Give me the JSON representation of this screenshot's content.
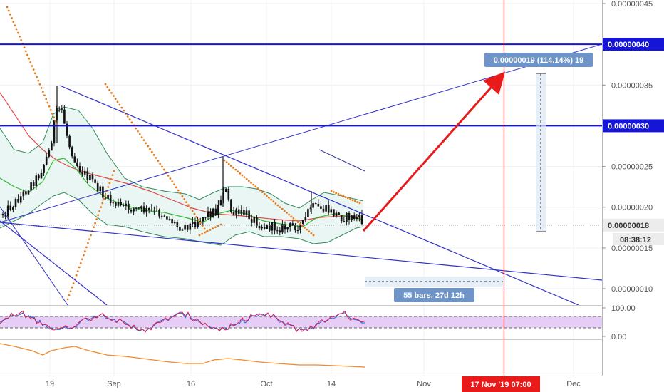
{
  "chart_data": {
    "type": "candlestick",
    "price_scale": {
      "ticks": [
        "0.00000045",
        "0.00000035",
        "0.00000025",
        "0.00000020",
        "0.00000015",
        "0.00000010"
      ],
      "tick_values": [
        4.5e-07,
        3.5e-07,
        2.5e-07,
        2e-07,
        1.5e-07,
        1e-07
      ],
      "range": [
        7e-08,
        4.6e-07
      ],
      "horizontal_levels": [
        {
          "label": "0.00000040",
          "value": 4e-07
        },
        {
          "label": "0.00000030",
          "value": 3e-07
        }
      ],
      "current_price": {
        "label": "0.00000018",
        "value": 1.78e-07
      },
      "countdown": "08:38:12"
    },
    "time_scale": {
      "labels": [
        "19",
        "Sep",
        "16",
        "Oct",
        "14",
        "Nov",
        "Dec"
      ],
      "cursor_label": "17 Nov '19   07:00"
    },
    "measure_label": "0.00000019 (114.14%) 19",
    "bars_label": "55 bars, 27d 12h",
    "rsi": {
      "ticks": [
        "100.00",
        "0.00"
      ],
      "band": [
        30,
        70
      ]
    },
    "colors": {
      "trendline": "#3131c9",
      "level": "#1515d8",
      "projection": "#e81a1a",
      "cursor": "#e81a1a",
      "bollinger": "#2e8b57",
      "ma_red": "#e04a4a",
      "ma_green": "#33b833",
      "sar": "#e87a1a",
      "rsi_fill": "#e6cdf5",
      "oscillator": "#f08a2a"
    }
  }
}
